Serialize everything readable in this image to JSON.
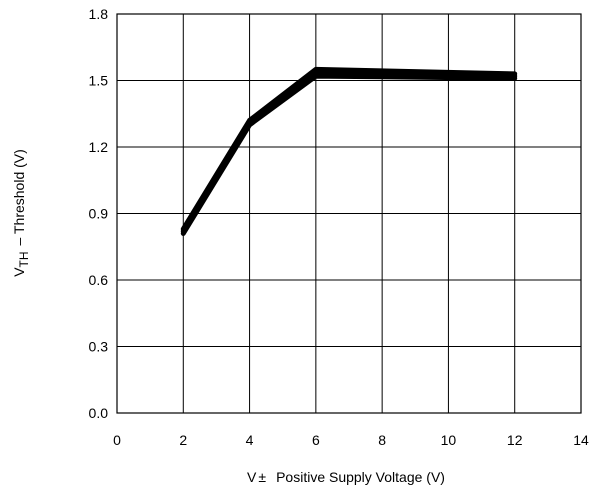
{
  "chart_data": {
    "type": "line",
    "title": "",
    "xlabel": {
      "prefix": "V",
      "symbol": "±",
      "text": "Positive Supply Voltage (V)"
    },
    "ylabel": {
      "base": "V",
      "subscript": "TH",
      "text": "– Threshold (V)"
    },
    "xlim": [
      0,
      14
    ],
    "ylim": [
      0,
      1.8
    ],
    "x_ticks": [
      "0",
      "2",
      "4",
      "6",
      "8",
      "10",
      "12",
      "14"
    ],
    "y_ticks": [
      "0.0",
      "0.3",
      "0.6",
      "0.9",
      "1.2",
      "1.5",
      "1.8"
    ],
    "grid": true,
    "series_color": "#000000",
    "series": [
      {
        "x": [
          2,
          4,
          6,
          12
        ],
        "y": [
          0.83,
          1.32,
          1.55,
          1.53
        ]
      },
      {
        "x": [
          2,
          4,
          6,
          12
        ],
        "y": [
          0.82,
          1.31,
          1.53,
          1.52
        ]
      },
      {
        "x": [
          2,
          4,
          6,
          12
        ],
        "y": [
          0.81,
          1.3,
          1.52,
          1.51
        ]
      }
    ]
  }
}
